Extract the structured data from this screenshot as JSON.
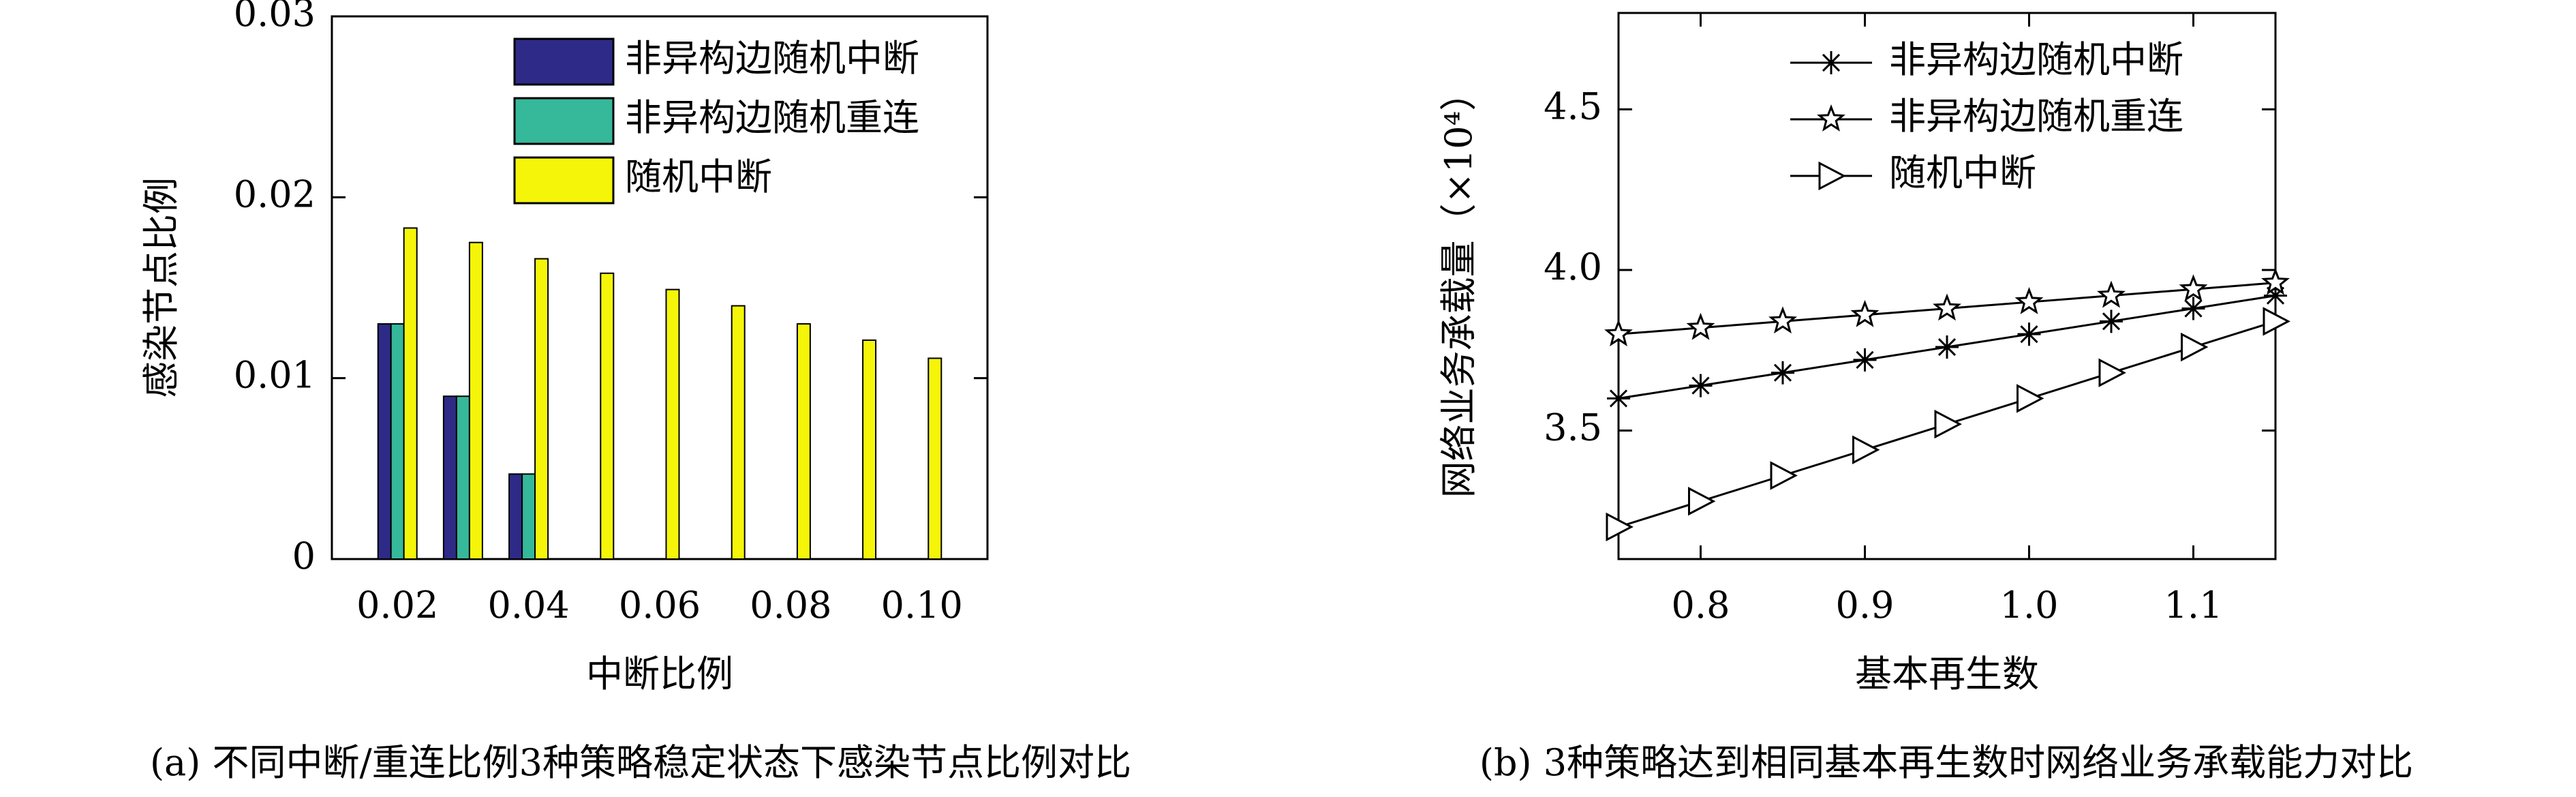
{
  "chart_data": [
    {
      "type": "bar",
      "caption": "(a) 不同中断/重连比例3种策略稳定状态下感染节点比例对比",
      "xlabel": "中断比例",
      "ylabel": "感染节点比例",
      "categories": [
        "0.02",
        null,
        "0.04",
        null,
        "0.06",
        null,
        "0.08",
        null,
        "0.10"
      ],
      "series": [
        {
          "name": "非异构边随机中断",
          "color": "#2e2a87",
          "values": [
            0.013,
            0.009,
            0.0047,
            0,
            0,
            0,
            0,
            0,
            0
          ]
        },
        {
          "name": "非异构边随机重连",
          "color": "#36b89a",
          "values": [
            0.013,
            0.009,
            0.0047,
            0,
            0,
            0,
            0,
            0,
            0
          ]
        },
        {
          "name": "随机中断",
          "color": "#f5f50a",
          "values": [
            0.0183,
            0.0175,
            0.0166,
            0.0158,
            0.0149,
            0.014,
            0.013,
            0.0121,
            0.0111
          ]
        }
      ],
      "ylim": [
        0,
        0.03
      ],
      "yticks": [
        0,
        0.01,
        0.02,
        0.03
      ],
      "legend": "upper right"
    },
    {
      "type": "line",
      "caption": "(b) 3种策略达到相同基本再生数时网络业务承载能力对比",
      "xlabel": "基本再生数",
      "ylabel": "网络业务承载量（×10⁴）",
      "x": [
        0.75,
        0.8,
        0.85,
        0.9,
        0.95,
        1.0,
        1.05,
        1.1,
        1.15
      ],
      "series": [
        {
          "name": "非异构边随机中断",
          "color": "#000000",
          "marker": "asterisk",
          "values": [
            3.6,
            3.64,
            3.68,
            3.72,
            3.76,
            3.8,
            3.84,
            3.88,
            3.92
          ]
        },
        {
          "name": "非异构边随机重连",
          "color": "#000000",
          "marker": "star",
          "values": [
            3.8,
            3.82,
            3.84,
            3.86,
            3.88,
            3.9,
            3.92,
            3.94,
            3.96
          ]
        },
        {
          "name": "随机中断",
          "color": "#000000",
          "marker": "triangle-right",
          "values": [
            3.2,
            3.28,
            3.36,
            3.44,
            3.52,
            3.6,
            3.68,
            3.76,
            3.84
          ]
        }
      ],
      "xlim": [
        0.75,
        1.15
      ],
      "xticks": [
        0.8,
        0.9,
        {
          "value": 1,
          "label": "1.0"
        },
        1.1
      ],
      "ylim": [
        3.1,
        4.8
      ],
      "yticks": [
        3.5,
        {
          "value": 4,
          "label": "4.0"
        },
        4.5
      ],
      "legend": "upper center"
    }
  ]
}
